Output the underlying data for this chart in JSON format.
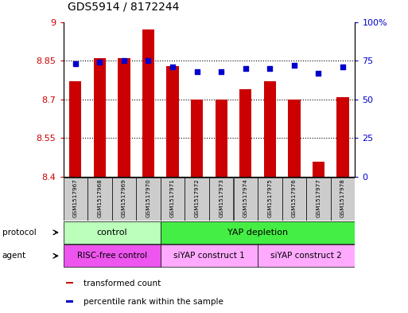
{
  "title": "GDS5914 / 8172244",
  "samples": [
    "GSM1517967",
    "GSM1517968",
    "GSM1517969",
    "GSM1517970",
    "GSM1517971",
    "GSM1517972",
    "GSM1517973",
    "GSM1517974",
    "GSM1517975",
    "GSM1517976",
    "GSM1517977",
    "GSM1517978"
  ],
  "transformed_counts": [
    8.77,
    8.86,
    8.86,
    8.97,
    8.83,
    8.7,
    8.7,
    8.74,
    8.77,
    8.7,
    8.46,
    8.71
  ],
  "percentile_ranks": [
    73,
    74,
    75,
    75,
    71,
    68,
    68,
    70,
    70,
    72,
    67,
    71
  ],
  "ylim_left": [
    8.4,
    9.0
  ],
  "ylim_right": [
    0,
    100
  ],
  "yticks_left": [
    8.4,
    8.55,
    8.7,
    8.85,
    9.0
  ],
  "ytick_labels_left": [
    "8.4",
    "8.55",
    "8.7",
    "8.85",
    "9"
  ],
  "yticks_right": [
    0,
    25,
    50,
    75,
    100
  ],
  "ytick_labels_right": [
    "0",
    "25",
    "50",
    "75",
    "100%"
  ],
  "bar_color": "#cc0000",
  "dot_color": "#0000cc",
  "protocol_labels": [
    {
      "text": "control",
      "start": 0,
      "end": 3,
      "color": "#bbffbb"
    },
    {
      "text": "YAP depletion",
      "start": 4,
      "end": 11,
      "color": "#44ee44"
    }
  ],
  "agent_labels": [
    {
      "text": "RISC-free control",
      "start": 0,
      "end": 3,
      "color": "#ee55ee"
    },
    {
      "text": "siYAP construct 1",
      "start": 4,
      "end": 7,
      "color": "#ffaaff"
    },
    {
      "text": "siYAP construct 2",
      "start": 8,
      "end": 11,
      "color": "#ffaaff"
    }
  ],
  "legend_items": [
    {
      "color": "#cc0000",
      "label": "transformed count"
    },
    {
      "color": "#0000cc",
      "label": "percentile rank within the sample"
    }
  ],
  "background_color": "#ffffff",
  "sample_bg_color": "#cccccc"
}
